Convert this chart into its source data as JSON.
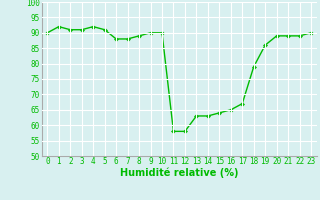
{
  "x": [
    0,
    1,
    2,
    3,
    4,
    5,
    6,
    7,
    8,
    9,
    10,
    11,
    12,
    13,
    14,
    15,
    16,
    17,
    18,
    19,
    20,
    21,
    22,
    23
  ],
  "y": [
    90,
    92,
    91,
    91,
    92,
    91,
    88,
    88,
    89,
    90,
    90,
    58,
    58,
    63,
    63,
    64,
    65,
    67,
    79,
    86,
    89,
    89,
    89,
    90
  ],
  "line_color": "#00bb00",
  "marker": "D",
  "marker_size": 2,
  "linewidth": 1.0,
  "xlabel": "Humidité relative (%)",
  "xlabel_color": "#00bb00",
  "xlabel_fontsize": 7,
  "ylim": [
    50,
    100
  ],
  "yticks": [
    50,
    55,
    60,
    65,
    70,
    75,
    80,
    85,
    90,
    95,
    100
  ],
  "xticks": [
    0,
    1,
    2,
    3,
    4,
    5,
    6,
    7,
    8,
    9,
    10,
    11,
    12,
    13,
    14,
    15,
    16,
    17,
    18,
    19,
    20,
    21,
    22,
    23
  ],
  "background_color": "#d8f0f0",
  "grid_color": "#ffffff",
  "tick_fontsize": 5.5,
  "tick_color": "#00bb00",
  "spine_color": "#aaaaaa"
}
